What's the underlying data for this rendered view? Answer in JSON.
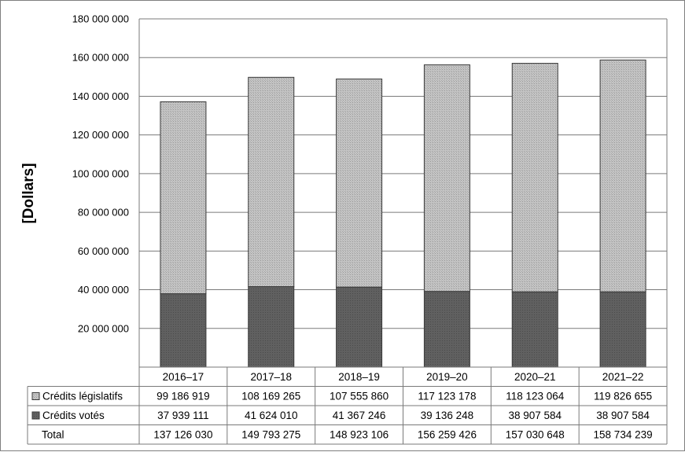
{
  "chart_data": {
    "type": "bar",
    "stacked": true,
    "ylabel": "[Dollars]",
    "ylim": [
      0,
      180000000
    ],
    "yticks": [
      20000000,
      40000000,
      60000000,
      80000000,
      100000000,
      120000000,
      140000000,
      160000000,
      180000000
    ],
    "ytick_labels": [
      "20 000 000",
      "40 000 000",
      "60 000 000",
      "80 000 000",
      "100 000 000",
      "120 000 000",
      "140 000 000",
      "160 000 000",
      "180 000 000"
    ],
    "grid": true,
    "categories": [
      "2016–17",
      "2017–18",
      "2018–19",
      "2019–20",
      "2020–21",
      "2021–22"
    ],
    "series": [
      {
        "name": "Crédits votés",
        "color": "#5a5a5a",
        "values": [
          37939111,
          41624010,
          41367246,
          39136248,
          38907584,
          38907584
        ],
        "labels": [
          "37 939 111",
          "41 624 010",
          "41 367 246",
          "39 136 248",
          "38 907 584",
          "38 907 584"
        ]
      },
      {
        "name": "Crédits législatifs",
        "color": "#b3b3b3",
        "values": [
          99186919,
          108169265,
          107555860,
          117123178,
          118123064,
          119826655
        ],
        "labels": [
          "99 186 919",
          "108 169 265",
          "107 555 860",
          "117 123 178",
          "118 123 064",
          "119 826 655"
        ]
      }
    ],
    "total": {
      "name": "Total",
      "labels": [
        "137 126 030",
        "149 793 275",
        "148 923 106",
        "156 259 426",
        "157 030 648",
        "158 734 239"
      ]
    }
  }
}
